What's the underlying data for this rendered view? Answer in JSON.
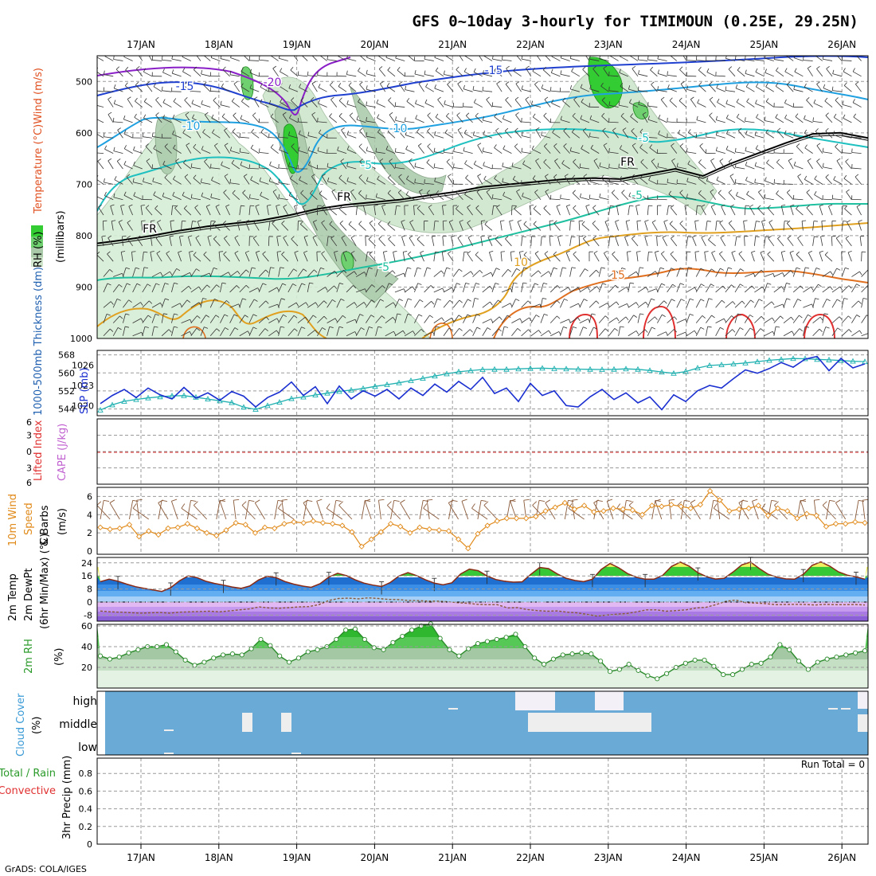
{
  "title": "GFS 0~10day 3-hourly for TIMIMOUN (0.25E, 29.25N)",
  "footer": "GrADS: COLA/IGES",
  "dates": [
    "17JAN",
    "18JAN",
    "19JAN",
    "20JAN",
    "21JAN",
    "22JAN",
    "23JAN",
    "24JAN",
    "25JAN",
    "26JAN"
  ],
  "chart_data": [
    {
      "type": "contour",
      "panel": "upper-air cross section",
      "ylabel_lines": [
        "RH (%)",
        "Temperature (°C)Wind (m/s)",
        "(millibars)"
      ],
      "yticks": [
        500,
        600,
        700,
        800,
        900,
        1000
      ],
      "ylim": [
        450,
        1000
      ],
      "contour_labels": [
        "-20",
        "-15",
        "-15",
        "-10",
        "-10",
        "-5",
        "-5",
        "-5",
        "-5",
        "FR",
        "FR",
        "FR",
        "10",
        "15"
      ],
      "freezing_level_hpa": [
        815,
        808,
        800,
        790,
        782,
        776,
        770,
        760,
        748,
        740,
        735,
        730,
        722,
        715,
        705,
        700,
        695,
        690,
        688,
        690,
        680,
        670,
        684,
        660,
        640,
        620,
        602,
        600,
        610
      ]
    },
    {
      "type": "line",
      "panel": "thickness and sea level pressure",
      "ylabel_left": "1000-500mb Thickness (dm)",
      "ylabel_right": "SLP (mb)",
      "yticks_left": [
        544,
        552,
        560,
        568
      ],
      "yticks_right": [
        1020,
        1023,
        1026
      ],
      "series": [
        {
          "name": "SLP",
          "color": "#1a2fd0",
          "values": [
            1020.3,
            1021.5,
            1022.4,
            1021.2,
            1022.6,
            1021.6,
            1021.0,
            1022.7,
            1021.1,
            1021.9,
            1020.8,
            1022.1,
            1021.4,
            1019.8,
            1021.2,
            1022.0,
            1023.5,
            1021.5,
            1022.8,
            1020.3,
            1022.9,
            1021.0,
            1022.2,
            1021.4,
            1022.4,
            1021.0,
            1022.6,
            1021.5,
            1023.2,
            1022.0,
            1023.6,
            1022.4,
            1024.2,
            1021.8,
            1022.6,
            1020.6,
            1023.3,
            1021.5,
            1022.2,
            1020.0,
            1019.8,
            1021.3,
            1022.4,
            1020.9,
            1021.9,
            1020.4,
            1021.3,
            1019.4,
            1021.6,
            1020.6,
            1022.2,
            1023.0,
            1022.6,
            1024.0,
            1025.3,
            1024.8,
            1025.5,
            1026.4,
            1025.7,
            1026.9,
            1027.3,
            1025.2,
            1027.0,
            1025.6,
            1026.2
          ]
        },
        {
          "name": "Thickness",
          "color": "#1fb0b0",
          "values": [
            543.5,
            545.8,
            547.4,
            548.2,
            548.9,
            549.4,
            549.8,
            549.9,
            549.2,
            548.4,
            547.6,
            546.8,
            544.8,
            543.8,
            545.5,
            547.0,
            548.6,
            549.3,
            550.2,
            551.0,
            551.8,
            552.4,
            553.1,
            554.0,
            554.8,
            555.6,
            556.6,
            557.6,
            558.6,
            559.6,
            560.5,
            561.0,
            561.5,
            561.6,
            561.6,
            561.8,
            562.0,
            562.1,
            561.9,
            561.8,
            561.7,
            561.6,
            561.5,
            561.6,
            561.8,
            561.6,
            561.1,
            560.4,
            559.8,
            560.6,
            562.2,
            563.3,
            563.6,
            564.0,
            564.4,
            565.0,
            565.6,
            566.0,
            566.4,
            566.3,
            566.0,
            565.8,
            565.5,
            565.2,
            565.0
          ]
        }
      ]
    },
    {
      "type": "line",
      "panel": "lifted index and CAPE",
      "ylabel_left": "Lifted Index",
      "ylabel_right": "CAPE (J/kg)",
      "yticks": [
        "6",
        "3",
        "0",
        "3",
        "6"
      ],
      "values": []
    },
    {
      "type": "line",
      "panel": "10m wind",
      "ylabel_lines": [
        "10m Wind",
        "Speed",
        "& Barbs",
        "(m/s)"
      ],
      "yticks": [
        0,
        2,
        4,
        6
      ],
      "ylim": [
        0,
        7
      ],
      "series": [
        {
          "name": "Speed",
          "color": "#e08a1a",
          "values": [
            2.6,
            2.4,
            2.5,
            2.9,
            1.6,
            2.2,
            1.8,
            2.5,
            2.6,
            3.0,
            2.5,
            2.0,
            1.7,
            2.3,
            3.1,
            2.9,
            2.0,
            2.6,
            2.5,
            3.0,
            3.2,
            3.1,
            3.3,
            3.1,
            3.0,
            2.8,
            2.1,
            0.5,
            1.3,
            2.1,
            3.0,
            2.7,
            2.0,
            2.6,
            2.4,
            2.3,
            2.2,
            1.3,
            0.3,
            1.9,
            2.8,
            3.3,
            3.6,
            3.6,
            3.6,
            3.8,
            4.4,
            4.8,
            5.3,
            4.6,
            5.0,
            4.3,
            4.4,
            4.7,
            4.6,
            4.5,
            4.0,
            5.0,
            4.9,
            5.1,
            4.9,
            4.7,
            5.1,
            6.6,
            5.6,
            4.4,
            4.6,
            4.7,
            5.0,
            3.9,
            4.7,
            4.4,
            3.6,
            4.1,
            3.9,
            2.7,
            3.0,
            3.0,
            3.2,
            3.1
          ]
        }
      ]
    },
    {
      "type": "area",
      "panel": "2m temperature",
      "ylabel_lines": [
        "2m Temp",
        "2m DewPt",
        "(6hr Min/Max) (°C)"
      ],
      "yticks": [
        -8,
        0,
        8,
        16,
        24
      ],
      "series": [
        {
          "name": "2m Temp",
          "color": "#8a2a14",
          "values": [
            12.5,
            14.0,
            12.8,
            11.0,
            9.4,
            8.4,
            7.4,
            6.5,
            8.8,
            13.0,
            16.0,
            15.0,
            12.8,
            11.4,
            10.4,
            9.2,
            8.4,
            9.8,
            13.5,
            15.8,
            15.0,
            12.6,
            11.0,
            9.8,
            9.0,
            11.2,
            15.3,
            17.6,
            16.2,
            13.6,
            11.6,
            10.4,
            9.5,
            12.0,
            16.0,
            18.0,
            16.2,
            13.6,
            11.6,
            10.6,
            11.8,
            17.2,
            20.2,
            19.2,
            16.0,
            13.8,
            12.8,
            12.2,
            12.4,
            17.0,
            21.2,
            20.5,
            17.2,
            14.6,
            13.2,
            12.5,
            14.0,
            20.0,
            23.6,
            21.0,
            17.4,
            15.2,
            14.0,
            14.0,
            16.4,
            21.8,
            24.5,
            22.0,
            18.0,
            15.5,
            14.1,
            14.6,
            18.4,
            22.8,
            24.5,
            20.5,
            17.0,
            15.2,
            14.2,
            14.0,
            17.0,
            22.5,
            24.6,
            22.0,
            18.5,
            16.5,
            15.4,
            14.0
          ]
        },
        {
          "name": "2m DewPt",
          "color": "#8a5a3a",
          "values": [
            -5.5,
            -6,
            -6.2,
            -6.5,
            -6.8,
            -6.6,
            -6.4,
            -6.8,
            -6.2,
            -6.0,
            -5.8,
            -5.6,
            -6.0,
            -5.4,
            -4.8,
            -4.2,
            -3.0,
            -3.6,
            -3.8,
            -3.4,
            -3.0,
            -2.8,
            -1.6,
            1.0,
            2.2,
            2.4,
            2.0,
            2.6,
            2.2,
            1.6,
            1.5,
            1.0,
            0.9,
            0.6,
            0.6,
            0.2,
            -0.4,
            -0.8,
            -1.4,
            -1.6,
            -1.6,
            -3.6,
            -3.4,
            -4.6,
            -5.2,
            -5.6,
            -5.4,
            -6.2,
            -6.6,
            -7.5,
            -8.6,
            -8.0,
            -7.4,
            -7.0,
            -6.0,
            -4.8,
            -4.8,
            -5.6,
            -5.2,
            -4.8,
            -3.6,
            -3.2,
            -1.6,
            0.5,
            1.2,
            -0.4,
            -0.6,
            -1.0,
            -1.6,
            -1.5,
            -1.4,
            -1.5,
            -1.8,
            -1.4,
            -1.6,
            -1.6,
            -1.5,
            -1.8
          ]
        }
      ]
    },
    {
      "type": "area",
      "panel": "2m relative humidity",
      "ylabel_lines": [
        "2m RH",
        "(%)"
      ],
      "yticks": [
        20,
        40,
        60
      ],
      "series": [
        {
          "name": "2m RH",
          "color": "#2a8a2a",
          "values": [
            31,
            28,
            30,
            34,
            37,
            40,
            40,
            42,
            35,
            27,
            22,
            25,
            29,
            32,
            33,
            32,
            38,
            47,
            41,
            31,
            25,
            29,
            35,
            37,
            40,
            47,
            56,
            57,
            47,
            39,
            37,
            44,
            50,
            56,
            60,
            62,
            48,
            37,
            31,
            38,
            43,
            45,
            47,
            49,
            52,
            40,
            29,
            23,
            28,
            32,
            33,
            34,
            33,
            26,
            16,
            18,
            23,
            17,
            12,
            9,
            14,
            20,
            24,
            27,
            27,
            21,
            13,
            13,
            18,
            23,
            24,
            30,
            42,
            37,
            26,
            18,
            25,
            28,
            30,
            32,
            34,
            36
          ]
        }
      ]
    },
    {
      "type": "heatmap",
      "panel": "cloud cover",
      "ylabel_lines": [
        "Cloud Cover",
        "(%)"
      ],
      "rows": [
        "high",
        "middle",
        "low"
      ]
    },
    {
      "type": "bar",
      "panel": "precipitation",
      "ylabel_lines": [
        "Total / Rain",
        "Convective",
        "3hr Precip (mm)"
      ],
      "yticks": [
        "0",
        "0.2",
        "0.4",
        "0.6",
        "0.8"
      ],
      "annotation": "Run Total = 0",
      "values": []
    }
  ]
}
